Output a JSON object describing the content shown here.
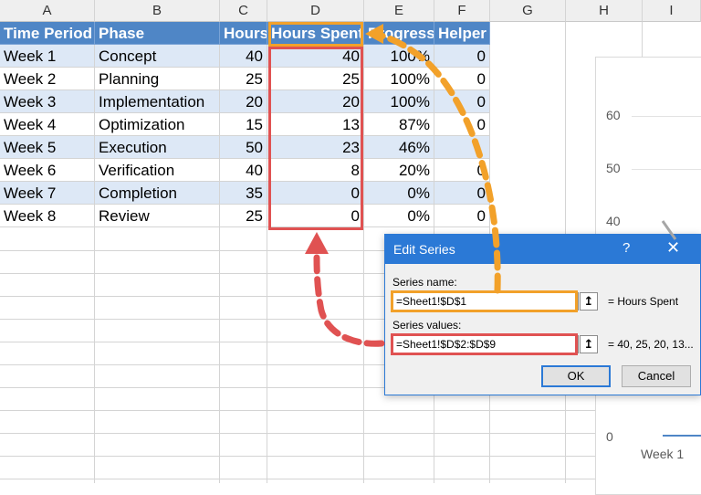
{
  "columns": [
    "A",
    "B",
    "C",
    "D",
    "E",
    "F",
    "G",
    "H",
    "I"
  ],
  "headers": [
    "Time Period",
    "Phase",
    "Hours",
    "Hours Spent",
    "Progress",
    "Helper"
  ],
  "rows": [
    [
      "Week 1",
      "Concept",
      "40",
      "40",
      "100%",
      "0"
    ],
    [
      "Week 2",
      "Planning",
      "25",
      "25",
      "100%",
      "0"
    ],
    [
      "Week 3",
      "Implementation",
      "20",
      "20",
      "100%",
      "0"
    ],
    [
      "Week 4",
      "Optimization",
      "15",
      "13",
      "87%",
      "0"
    ],
    [
      "Week 5",
      "Execution",
      "50",
      "23",
      "46%",
      ""
    ],
    [
      "Week 6",
      "Verification",
      "40",
      "8",
      "20%",
      "0"
    ],
    [
      "Week 7",
      "Completion",
      "35",
      "0",
      "0%",
      "0"
    ],
    [
      "Week 8",
      "Review",
      "25",
      "0",
      "0%",
      "0"
    ]
  ],
  "chart": {
    "y_ticks": [
      "60",
      "50",
      "40",
      "0"
    ],
    "x_label": "Week 1"
  },
  "dialog": {
    "title": "Edit Series",
    "help": "?",
    "close": "✕",
    "series_name_label": "Series name:",
    "series_name_value": "=Sheet1!$D$1",
    "series_name_result": "= Hours Spent",
    "series_values_label": "Series values:",
    "series_values_value": "=Sheet1!$D$2:$D$9",
    "series_values_result": "= 40, 25, 20, 13...",
    "ok": "OK",
    "cancel": "Cancel",
    "pick_icon": "↥"
  },
  "colors": {
    "header_blue": "#4f86c6",
    "band": "#dde8f6",
    "orange": "#f2a12a",
    "red": "#e05252",
    "dialog_title": "#2b79d6"
  }
}
